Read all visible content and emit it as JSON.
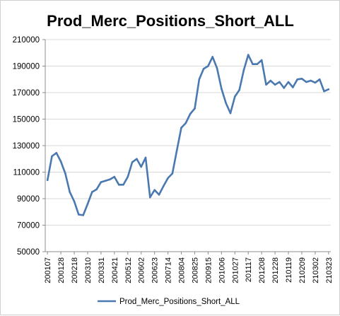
{
  "chart_data": {
    "type": "line",
    "title": "Prod_Merc_Positions_Short_ALL",
    "xlabel": "",
    "ylabel": "",
    "ylim": [
      50000,
      210000
    ],
    "y_ticks": [
      50000,
      70000,
      90000,
      110000,
      130000,
      150000,
      170000,
      190000,
      210000
    ],
    "x_tick_labels": [
      "200107",
      "200128",
      "200218",
      "200310",
      "200331",
      "200421",
      "200512",
      "200602",
      "200623",
      "200714",
      "200804",
      "200825",
      "200915",
      "201006",
      "201027",
      "201117",
      "201208",
      "201228",
      "210119",
      "210209",
      "210302",
      "210323"
    ],
    "grid": true,
    "legend_position": "bottom",
    "series": [
      {
        "name": "Prod_Merc_Positions_Short_ALL",
        "color": "#4a78b0",
        "values": [
          104000,
          122000,
          124500,
          118000,
          109000,
          95000,
          88000,
          78000,
          77500,
          86000,
          95000,
          97000,
          102500,
          103500,
          104500,
          106500,
          100500,
          100500,
          106500,
          117500,
          120000,
          114000,
          121000,
          91000,
          96500,
          93000,
          99500,
          105500,
          109000,
          126500,
          143500,
          147000,
          154000,
          158000,
          180000,
          188000,
          190000,
          197000,
          188500,
          173000,
          162000,
          154500,
          167000,
          172000,
          187000,
          198500,
          191500,
          191500,
          194500,
          176000,
          179000,
          176000,
          178000,
          173500,
          178000,
          174000,
          180000,
          180500,
          178000,
          179000,
          177500,
          180000,
          171000,
          172500
        ]
      }
    ]
  }
}
